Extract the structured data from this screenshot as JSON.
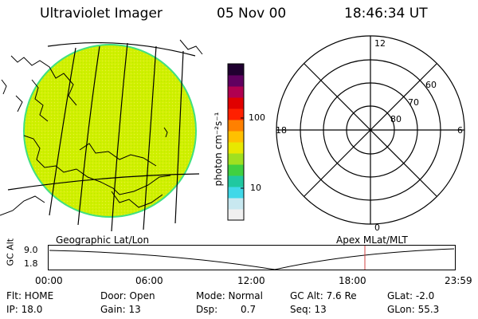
{
  "header": {
    "instrument": "Ultraviolet Imager",
    "date": "05 Nov 00",
    "time": "18:46:34 UT"
  },
  "colorbar": {
    "label": "photon cm⁻²s⁻¹",
    "tick_high": "100",
    "tick_low": "10",
    "colors": [
      "#f0f0f0",
      "#c8e8f0",
      "#40d8e8",
      "#20c8a0",
      "#40d040",
      "#a0e020",
      "#e8e800",
      "#ffc000",
      "#ff8000",
      "#ff2000",
      "#e00000",
      "#b00050",
      "#600060",
      "#200030"
    ]
  },
  "globe": {
    "fill_color": "#d0f000",
    "limb_color": "#40e080"
  },
  "polar_plot": {
    "mlt_top": "12",
    "mlt_bottom": "0",
    "mlt_left": "18",
    "mlt_right": "6",
    "lat_60": "60",
    "lat_70": "70",
    "lat_80": "80"
  },
  "labels": {
    "left_caption": "Geographic Lat/Lon",
    "right_caption": "Apex MLat/MLT"
  },
  "altitude_plot": {
    "ylabel": "GC Alt",
    "ytick_high": "9.0",
    "ytick_low": "1.8",
    "xticks": [
      "00:00",
      "06:00",
      "12:00",
      "18:00",
      "23:59"
    ],
    "marker_color": "#d04040"
  },
  "info": {
    "flt": "Flt: HOME",
    "door": "Door: Open",
    "mode": "Mode: Normal",
    "gcalt": "GC Alt: 7.6 Re",
    "glat": "GLat:  -2.0",
    "ip": "IP: 18.0",
    "gain": "Gain: 13",
    "dsp_label": "Dsp:",
    "dsp_value": "0.7",
    "seq": "Seq: 13",
    "glon": "GLon:  55.3"
  }
}
